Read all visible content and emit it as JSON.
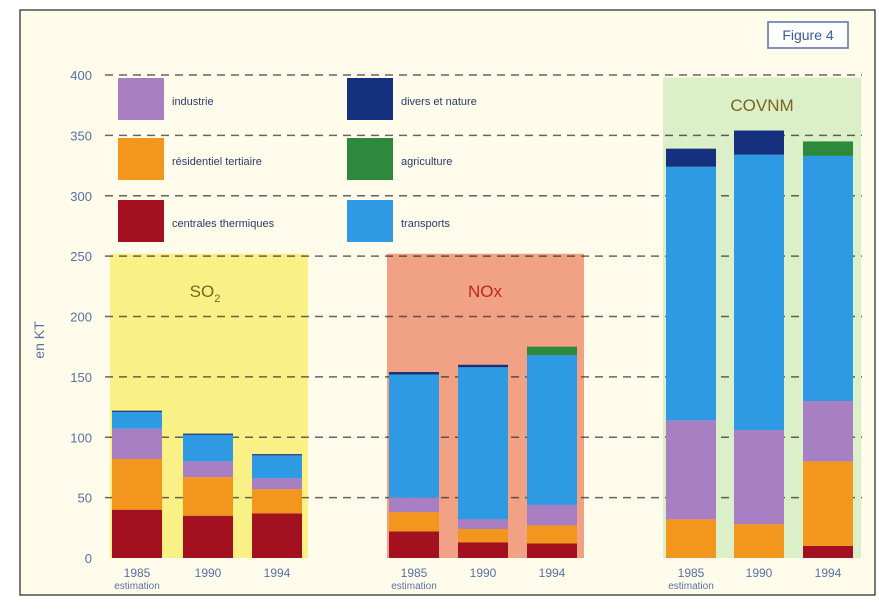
{
  "figure_label": "Figure 4",
  "colors": {
    "industrie": "#a87fc3",
    "residentiel_tertiaire": "#f3961e",
    "centrales_thermiques": "#a3101f",
    "divers_et_nature": "#14307e",
    "agriculture": "#2d8a3c",
    "transports": "#2e9ae4",
    "background": "#fffcec",
    "axis_text": "#5570a5",
    "grid": "#333333",
    "so2_panel": "#f8f07a",
    "nox_panel": "#ef9779",
    "covnm_panel": "#d7edc4"
  },
  "chart_data": {
    "type": "bar",
    "stacked": true,
    "ylabel": "en KT",
    "ylim": [
      0,
      400
    ],
    "yticks": [
      0,
      50,
      100,
      150,
      200,
      250,
      300,
      350,
      400
    ],
    "grid": "horizontal dashed",
    "legend_placement": "top-left",
    "legend": [
      {
        "key": "industrie",
        "label": "industrie"
      },
      {
        "key": "residentiel_tertiaire",
        "label": "résidentiel tertiaire"
      },
      {
        "key": "centrales_thermiques",
        "label": "centrales thermiques"
      },
      {
        "key": "divers_et_nature",
        "label": "divers et nature"
      },
      {
        "key": "agriculture",
        "label": "agriculture"
      },
      {
        "key": "transports",
        "label": "transports"
      }
    ],
    "stack_order": [
      "centrales_thermiques",
      "residentiel_tertiaire",
      "industrie",
      "transports",
      "divers_et_nature",
      "agriculture"
    ],
    "groups": [
      {
        "pollutant": "SO",
        "pollutant_sub": "2",
        "panel_color": "so2_panel",
        "bars": [
          {
            "label": "1985",
            "sublabel": "estimation",
            "values": {
              "centrales_thermiques": 40,
              "residentiel_tertiaire": 42,
              "industrie": 25,
              "transports": 14,
              "divers_et_nature": 1,
              "agriculture": 0
            }
          },
          {
            "label": "1990",
            "sublabel": "",
            "values": {
              "centrales_thermiques": 35,
              "residentiel_tertiaire": 32,
              "industrie": 13,
              "transports": 22,
              "divers_et_nature": 1,
              "agriculture": 0
            }
          },
          {
            "label": "1994",
            "sublabel": "",
            "values": {
              "centrales_thermiques": 37,
              "residentiel_tertiaire": 20,
              "industrie": 9,
              "transports": 19,
              "divers_et_nature": 1,
              "agriculture": 0
            }
          }
        ]
      },
      {
        "pollutant": "NOx",
        "pollutant_sub": "",
        "panel_color": "nox_panel",
        "bars": [
          {
            "label": "1985",
            "sublabel": "estimation",
            "values": {
              "centrales_thermiques": 22,
              "residentiel_tertiaire": 16,
              "industrie": 12,
              "transports": 102,
              "divers_et_nature": 2,
              "agriculture": 0
            }
          },
          {
            "label": "1990",
            "sublabel": "",
            "values": {
              "centrales_thermiques": 13,
              "residentiel_tertiaire": 11,
              "industrie": 8,
              "transports": 126,
              "divers_et_nature": 2,
              "agriculture": 0
            }
          },
          {
            "label": "1994",
            "sublabel": "",
            "values": {
              "centrales_thermiques": 12,
              "residentiel_tertiaire": 15,
              "industrie": 17,
              "transports": 124,
              "divers_et_nature": 0,
              "agriculture": 7
            }
          }
        ]
      },
      {
        "pollutant": "COVNM",
        "pollutant_sub": "",
        "panel_color": "covnm_panel",
        "bars": [
          {
            "label": "1985",
            "sublabel": "estimation",
            "values": {
              "centrales_thermiques": 0,
              "residentiel_tertiaire": 32,
              "industrie": 82,
              "transports": 210,
              "divers_et_nature": 15,
              "agriculture": 0
            }
          },
          {
            "label": "1990",
            "sublabel": "",
            "values": {
              "centrales_thermiques": 0,
              "residentiel_tertiaire": 28,
              "industrie": 78,
              "transports": 228,
              "divers_et_nature": 20,
              "agriculture": 0
            }
          },
          {
            "label": "1994",
            "sublabel": "",
            "values": {
              "centrales_thermiques": 10,
              "residentiel_tertiaire": 70,
              "industrie": 50,
              "transports": 203,
              "divers_et_nature": 0,
              "agriculture": 12
            }
          }
        ]
      }
    ]
  }
}
